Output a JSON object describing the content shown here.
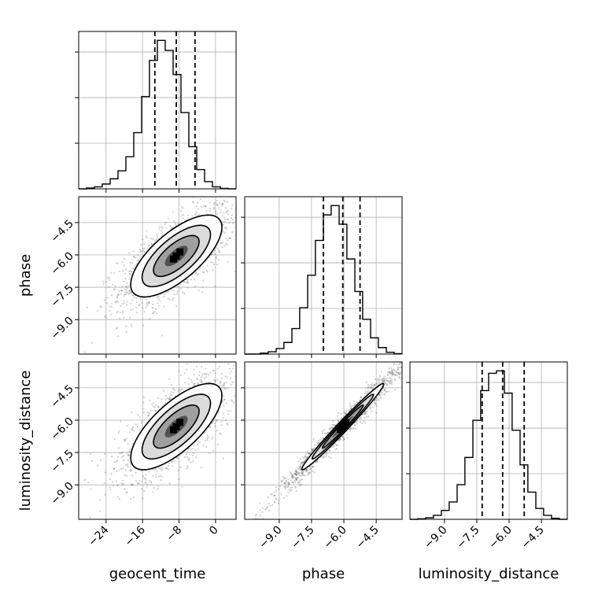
{
  "chart_data": {
    "type": "scatter",
    "layout": "corner-plot",
    "parameters": [
      "geocent_time",
      "phase",
      "luminosity_distance"
    ],
    "xlabels": [
      "geocent_time",
      "phase",
      "luminosity_distance"
    ],
    "ylabels": [
      "",
      "phase",
      "luminosity_distance"
    ],
    "grid": true,
    "colors": {
      "line": "#000000",
      "grid": "#b0b0b0",
      "points": "#555555"
    },
    "ranges": [
      [
        -30,
        4.5
      ],
      [
        -10.6,
        -3.3
      ],
      [
        -10.6,
        -3.3
      ]
    ],
    "xticks": [
      [
        -24,
        -16,
        -8,
        0
      ],
      [
        -9.0,
        -7.5,
        -6.0,
        -4.5
      ],
      [
        -9.0,
        -7.5,
        -6.0,
        -4.5
      ]
    ],
    "xtick_labels": [
      [
        "−24",
        "−16",
        "−8",
        "0"
      ],
      [
        "−9.0",
        "−7.5",
        "−6.0",
        "−4.5"
      ],
      [
        "−9.0",
        "−7.5",
        "−6.0",
        "−4.5"
      ]
    ],
    "yticks": [
      [
        -4.5,
        -6.0,
        -7.5,
        -9.0
      ],
      [
        -4.5,
        -6.0,
        -7.5,
        -9.0
      ]
    ],
    "ytick_labels": [
      [
        "−4.5",
        "−6.0",
        "−7.5",
        "−9.0"
      ],
      [
        "−4.5",
        "−6.0",
        "−7.5",
        "−9.0"
      ]
    ],
    "quantiles": [
      [
        -13.3,
        -8.6,
        -4.5
      ],
      [
        -6.95,
        -6.05,
        -5.25
      ],
      [
        -7.25,
        -6.3,
        -5.3
      ]
    ],
    "histograms": [
      {
        "param": "geocent_time",
        "bin_edges": [
          -30,
          -28.28,
          -26.55,
          -24.83,
          -23.1,
          -21.38,
          -19.65,
          -17.93,
          -16.2,
          -14.48,
          -12.75,
          -11.03,
          -9.3,
          -7.58,
          -5.85,
          -4.13,
          -2.4,
          -0.68,
          1.05,
          2.78,
          4.5
        ],
        "counts": [
          0,
          2,
          5,
          12,
          25,
          45,
          80,
          140,
          230,
          320,
          370,
          345,
          285,
          190,
          105,
          48,
          18,
          5,
          1,
          0
        ]
      },
      {
        "param": "phase",
        "bin_edges": [
          -10.6,
          -10.24,
          -9.87,
          -9.51,
          -9.14,
          -8.78,
          -8.41,
          -8.05,
          -7.68,
          -7.32,
          -6.95,
          -6.59,
          -6.22,
          -5.86,
          -5.49,
          -5.13,
          -4.76,
          -4.4,
          -4.03,
          -3.67,
          -3.3
        ],
        "counts": [
          0,
          0,
          2,
          5,
          12,
          25,
          55,
          100,
          170,
          245,
          300,
          320,
          280,
          205,
          135,
          75,
          35,
          14,
          4,
          1
        ]
      },
      {
        "param": "luminosity_distance",
        "bin_edges": [
          -10.6,
          -10.24,
          -9.87,
          -9.51,
          -9.14,
          -8.78,
          -8.41,
          -8.05,
          -7.68,
          -7.32,
          -6.95,
          -6.59,
          -6.22,
          -5.86,
          -5.49,
          -5.13,
          -4.76,
          -4.4,
          -4.03,
          -3.67,
          -3.3
        ],
        "counts": [
          0,
          1,
          3,
          8,
          18,
          35,
          70,
          125,
          200,
          260,
          295,
          300,
          255,
          180,
          110,
          55,
          22,
          8,
          2,
          0
        ]
      }
    ],
    "joint": [
      {
        "x": "geocent_time",
        "y": "phase",
        "center": [
          -8.6,
          -6.05
        ],
        "sigma": [
          5.0,
          0.95
        ],
        "corr": 0.7,
        "n_points": 1600,
        "point_spread": 1.25
      },
      {
        "x": "geocent_time",
        "y": "luminosity_distance",
        "center": [
          -8.6,
          -6.3
        ],
        "sigma": [
          5.0,
          1.0
        ],
        "corr": 0.72,
        "n_points": 1600,
        "point_spread": 1.25
      },
      {
        "x": "phase",
        "y": "luminosity_distance",
        "center": [
          -6.05,
          -6.3
        ],
        "sigma": [
          0.95,
          1.0
        ],
        "corr": 0.985,
        "n_points": 1400,
        "point_spread": 1.6
      }
    ]
  }
}
